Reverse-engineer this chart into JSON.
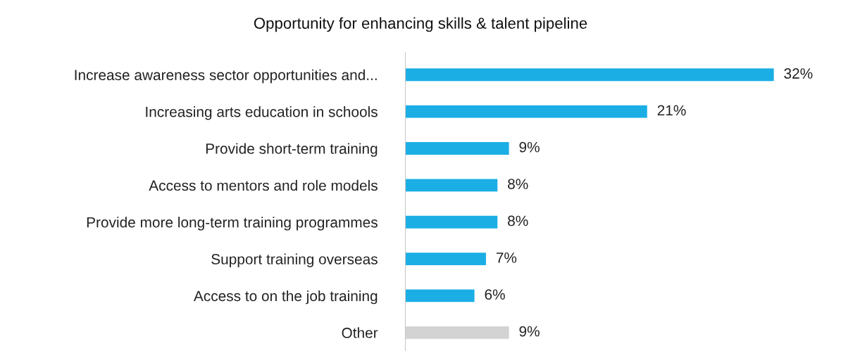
{
  "chart_data": {
    "type": "bar",
    "orientation": "horizontal",
    "title": "Opportunity for enhancing skills & talent pipeline",
    "categories": [
      "Increase awareness sector opportunities and...",
      "Increasing arts education in schools",
      "Provide short-term training",
      "Access to mentors and role models",
      "Provide more long-term training programmes",
      "Support training overseas",
      "Access to on the job training",
      "Other"
    ],
    "values": [
      32,
      21,
      9,
      8,
      8,
      7,
      6,
      9
    ],
    "value_labels": [
      "32%",
      "21%",
      "9%",
      "8%",
      "8%",
      "7%",
      "6%",
      "9%"
    ],
    "colors": [
      "#1aaee5",
      "#1aaee5",
      "#1aaee5",
      "#1aaee5",
      "#1aaee5",
      "#1aaee5",
      "#1aaee5",
      "#d3d3d3"
    ],
    "tick_labels": "y",
    "grid": false
  }
}
